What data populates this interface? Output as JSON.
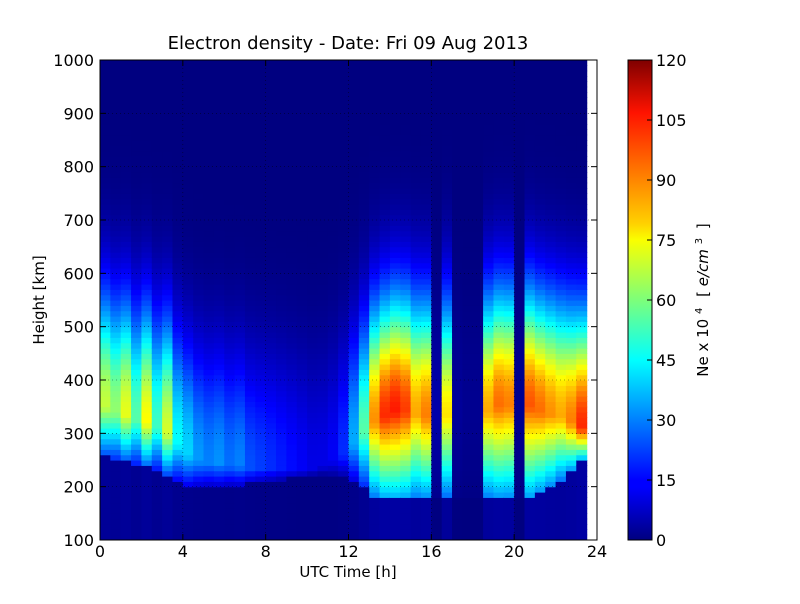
{
  "chart_data": {
    "type": "heatmap",
    "title": "Electron density - Date: Fri 09 Aug 2013",
    "xlabel": "UTC Time [h]",
    "ylabel": "Height [km]",
    "xlim": [
      0,
      24
    ],
    "ylim": [
      100,
      1000
    ],
    "xticks": [
      0,
      4,
      8,
      12,
      16,
      20,
      24
    ],
    "xtick_labels": [
      "0",
      "4",
      "8",
      "12",
      "16",
      "20",
      "24"
    ],
    "yticks": [
      100,
      200,
      300,
      400,
      500,
      600,
      700,
      800,
      900,
      1000
    ],
    "ytick_labels": [
      "100",
      "200",
      "300",
      "400",
      "500",
      "600",
      "700",
      "800",
      "900",
      "1000"
    ],
    "grid": true,
    "colormap": "jet",
    "colorbar": {
      "label_prefix": "Ne x 10",
      "label_exponent": "4",
      "label_unit_open": "[",
      "label_unit_base": "e/cm",
      "label_unit_exponent": "3",
      "label_unit_close": "]",
      "range": [
        0,
        120
      ],
      "ticks": [
        0,
        15,
        30,
        45,
        60,
        75,
        90,
        105,
        120
      ],
      "tick_labels": [
        "0",
        "15",
        "30",
        "45",
        "60",
        "75",
        "90",
        "105",
        "120"
      ]
    },
    "data_end_hour": 23.5,
    "hour_bins": [
      0,
      0.5,
      1,
      1.5,
      2,
      2.5,
      3,
      3.5,
      4,
      4.5,
      5,
      5.5,
      6,
      6.5,
      7,
      7.5,
      8,
      8.5,
      9,
      9.5,
      10,
      10.5,
      11,
      11.5,
      12,
      12.5,
      13,
      13.5,
      14,
      14.5,
      15,
      15.5,
      16,
      16.5,
      17,
      17.5,
      18,
      18.5,
      19,
      19.5,
      20,
      20.5,
      21,
      21.5,
      22,
      22.5,
      23
    ],
    "peak_ne": [
      68,
      62,
      72,
      55,
      75,
      52,
      70,
      45,
      40,
      33,
      30,
      32,
      28,
      30,
      24,
      22,
      20,
      18,
      16,
      14,
      12,
      12,
      14,
      20,
      35,
      55,
      88,
      100,
      102,
      98,
      85,
      90,
      5,
      78,
      3,
      2,
      2,
      85,
      92,
      90,
      2,
      95,
      92,
      88,
      85,
      90,
      100
    ],
    "peak_height_km": [
      350,
      340,
      335,
      325,
      320,
      310,
      300,
      280,
      260,
      250,
      245,
      245,
      240,
      240,
      235,
      235,
      235,
      235,
      235,
      235,
      235,
      240,
      250,
      260,
      280,
      300,
      320,
      330,
      340,
      340,
      335,
      330,
      330,
      330,
      330,
      330,
      330,
      340,
      350,
      350,
      350,
      350,
      340,
      335,
      330,
      320,
      310
    ],
    "layer_floor_km": [
      260,
      255,
      250,
      245,
      240,
      235,
      225,
      215,
      205,
      205,
      205,
      205,
      205,
      205,
      208,
      210,
      212,
      214,
      216,
      218,
      222,
      225,
      225,
      225,
      215,
      200,
      185,
      180,
      180,
      180,
      180,
      180,
      180,
      180,
      180,
      180,
      180,
      180,
      180,
      180,
      180,
      180,
      190,
      200,
      215,
      230,
      250
    ]
  }
}
